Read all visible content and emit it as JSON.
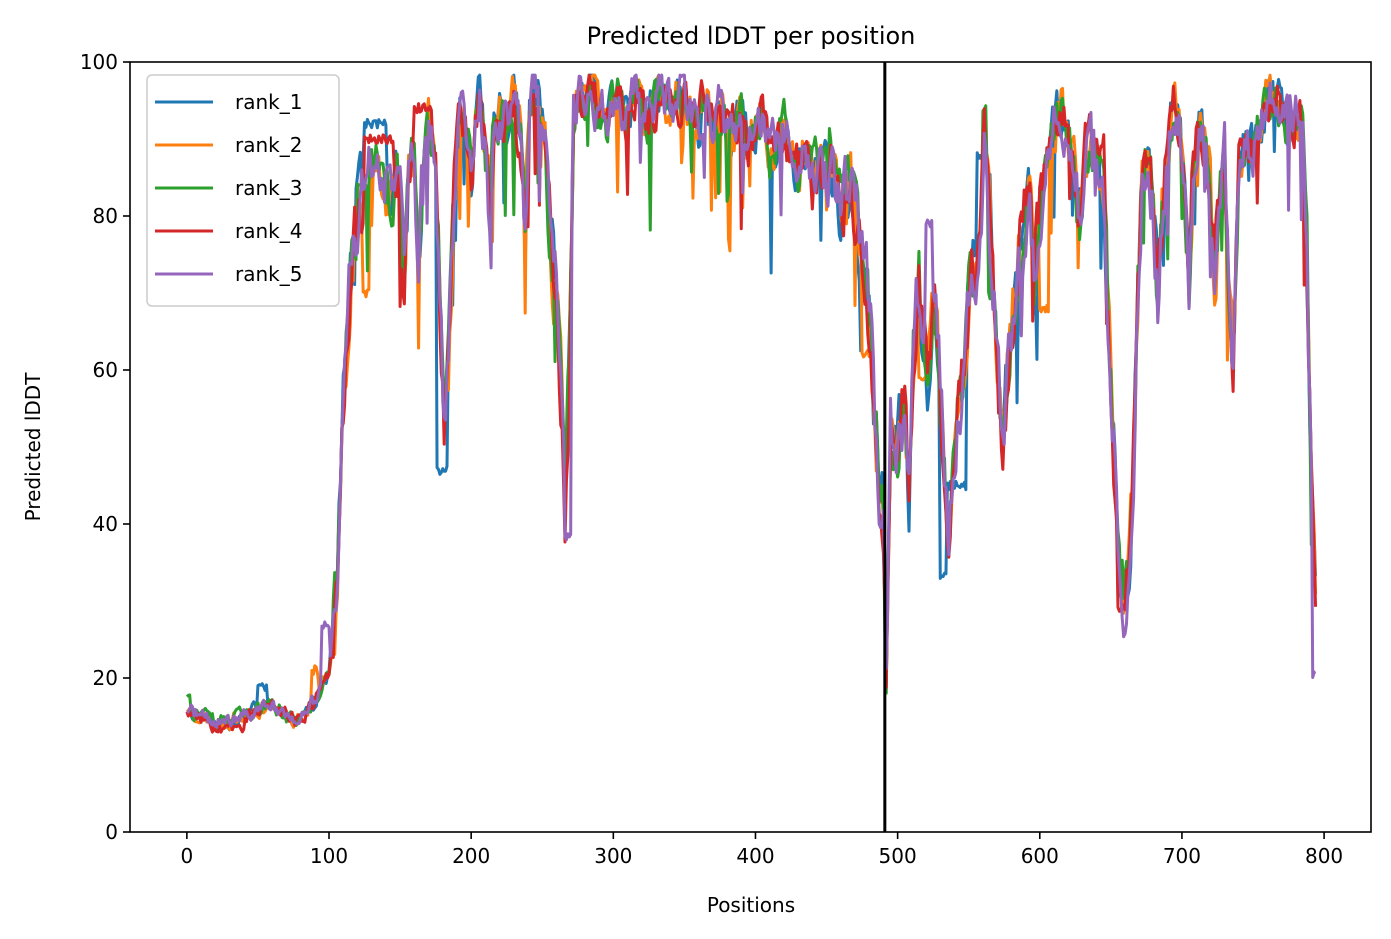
{
  "chart_data": {
    "type": "line",
    "title": "Predicted lDDT per position",
    "xlabel": "Positions",
    "ylabel": "Predicted lDDT",
    "xlim": [
      -40,
      833
    ],
    "ylim": [
      0,
      100
    ],
    "xticks": [
      0,
      100,
      200,
      300,
      400,
      500,
      600,
      700,
      800
    ],
    "xtick_labels": [
      "0",
      "100",
      "200",
      "300",
      "400",
      "500",
      "600",
      "700",
      "800"
    ],
    "yticks": [
      0,
      20,
      40,
      60,
      80,
      100
    ],
    "ytick_labels": [
      "0",
      "20",
      "40",
      "60",
      "80",
      "100"
    ],
    "grid": false,
    "legend_position": "upper-left",
    "vline": {
      "x": 491,
      "color": "#000000"
    },
    "base_profile": [
      [
        0,
        16
      ],
      [
        10,
        15
      ],
      [
        20,
        14
      ],
      [
        30,
        14.5
      ],
      [
        40,
        15
      ],
      [
        50,
        16
      ],
      [
        60,
        16.5
      ],
      [
        70,
        15
      ],
      [
        80,
        14.5
      ],
      [
        90,
        17
      ],
      [
        100,
        21
      ],
      [
        105,
        30
      ],
      [
        110,
        55
      ],
      [
        115,
        73
      ],
      [
        120,
        80
      ],
      [
        125,
        83
      ],
      [
        130,
        86
      ],
      [
        135,
        87
      ],
      [
        140,
        85
      ],
      [
        145,
        84
      ],
      [
        150,
        82
      ],
      [
        153,
        70
      ],
      [
        156,
        86
      ],
      [
        160,
        88
      ],
      [
        163,
        72
      ],
      [
        166,
        86
      ],
      [
        170,
        92
      ],
      [
        175,
        86
      ],
      [
        178,
        70
      ],
      [
        181,
        52
      ],
      [
        184,
        60
      ],
      [
        188,
        82
      ],
      [
        192,
        94
      ],
      [
        196,
        92
      ],
      [
        200,
        85
      ],
      [
        203,
        93
      ],
      [
        206,
        96
      ],
      [
        210,
        88
      ],
      [
        213,
        80
      ],
      [
        216,
        92
      ],
      [
        220,
        94
      ],
      [
        225,
        92
      ],
      [
        230,
        95
      ],
      [
        235,
        89
      ],
      [
        238,
        78
      ],
      [
        241,
        94
      ],
      [
        244,
        97
      ],
      [
        248,
        94
      ],
      [
        252,
        90
      ],
      [
        256,
        75
      ],
      [
        260,
        70
      ],
      [
        263,
        58
      ],
      [
        266,
        40
      ],
      [
        269,
        60
      ],
      [
        272,
        92
      ],
      [
        276,
        97
      ],
      [
        280,
        95
      ],
      [
        285,
        96
      ],
      [
        290,
        94
      ],
      [
        295,
        92
      ],
      [
        300,
        96
      ],
      [
        305,
        94
      ],
      [
        310,
        93
      ],
      [
        315,
        96
      ],
      [
        320,
        94
      ],
      [
        325,
        92
      ],
      [
        330,
        95
      ],
      [
        335,
        96
      ],
      [
        340,
        93
      ],
      [
        345,
        95
      ],
      [
        350,
        96
      ],
      [
        355,
        94
      ],
      [
        360,
        92
      ],
      [
        365,
        95
      ],
      [
        370,
        93
      ],
      [
        375,
        94
      ],
      [
        380,
        91
      ],
      [
        385,
        92
      ],
      [
        390,
        93
      ],
      [
        395,
        89
      ],
      [
        400,
        91
      ],
      [
        405,
        93
      ],
      [
        410,
        88
      ],
      [
        415,
        90
      ],
      [
        420,
        91
      ],
      [
        425,
        88
      ],
      [
        430,
        86
      ],
      [
        435,
        89
      ],
      [
        440,
        85
      ],
      [
        445,
        87
      ],
      [
        450,
        83
      ],
      [
        455,
        86
      ],
      [
        460,
        81
      ],
      [
        465,
        84
      ],
      [
        470,
        80
      ],
      [
        475,
        76
      ],
      [
        478,
        72
      ],
      [
        481,
        65
      ],
      [
        484,
        52
      ],
      [
        487,
        45
      ],
      [
        490,
        42
      ],
      [
        492,
        20
      ],
      [
        495,
        52
      ],
      [
        500,
        50
      ],
      [
        505,
        55
      ],
      [
        508,
        44
      ],
      [
        511,
        62
      ],
      [
        515,
        72
      ],
      [
        518,
        66
      ],
      [
        521,
        60
      ],
      [
        525,
        70
      ],
      [
        528,
        65
      ],
      [
        531,
        55
      ],
      [
        534,
        42
      ],
      [
        536,
        38
      ],
      [
        540,
        48
      ],
      [
        545,
        58
      ],
      [
        550,
        68
      ],
      [
        555,
        74
      ],
      [
        558,
        80
      ],
      [
        561,
        90
      ],
      [
        565,
        80
      ],
      [
        568,
        70
      ],
      [
        571,
        58
      ],
      [
        574,
        52
      ],
      [
        577,
        60
      ],
      [
        580,
        66
      ],
      [
        585,
        74
      ],
      [
        590,
        80
      ],
      [
        593,
        84
      ],
      [
        596,
        72
      ],
      [
        600,
        80
      ],
      [
        605,
        88
      ],
      [
        610,
        92
      ],
      [
        615,
        94
      ],
      [
        620,
        90
      ],
      [
        625,
        86
      ],
      [
        628,
        80
      ],
      [
        632,
        88
      ],
      [
        636,
        90
      ],
      [
        640,
        87
      ],
      [
        645,
        85
      ],
      [
        648,
        68
      ],
      [
        651,
        55
      ],
      [
        654,
        42
      ],
      [
        657,
        34
      ],
      [
        660,
        31
      ],
      [
        663,
        36
      ],
      [
        666,
        48
      ],
      [
        669,
        70
      ],
      [
        672,
        85
      ],
      [
        676,
        88
      ],
      [
        680,
        80
      ],
      [
        683,
        70
      ],
      [
        686,
        80
      ],
      [
        690,
        88
      ],
      [
        694,
        95
      ],
      [
        698,
        92
      ],
      [
        702,
        82
      ],
      [
        705,
        72
      ],
      [
        708,
        88
      ],
      [
        712,
        92
      ],
      [
        716,
        90
      ],
      [
        720,
        84
      ],
      [
        723,
        72
      ],
      [
        726,
        78
      ],
      [
        730,
        88
      ],
      [
        733,
        70
      ],
      [
        736,
        62
      ],
      [
        740,
        86
      ],
      [
        745,
        90
      ],
      [
        750,
        88
      ],
      [
        755,
        92
      ],
      [
        760,
        95
      ],
      [
        765,
        96
      ],
      [
        770,
        94
      ],
      [
        775,
        92
      ],
      [
        780,
        93
      ],
      [
        785,
        91
      ],
      [
        788,
        75
      ],
      [
        791,
        45
      ],
      [
        794,
        28
      ]
    ],
    "series": [
      {
        "name": "rank_1",
        "color": "#1f77b4",
        "seed": 11,
        "overrides": [
          [
            18,
            21,
            14
          ],
          [
            50,
            56,
            19
          ],
          [
            125,
            140,
            92
          ],
          [
            176,
            183,
            47
          ],
          [
            530,
            537,
            33.5
          ],
          [
            535,
            548,
            45
          ],
          [
            556,
            560,
            88
          ],
          [
            655,
            663,
            31
          ]
        ]
      },
      {
        "name": "rank_2",
        "color": "#ff7f0e",
        "seed": 23,
        "overrides": [
          [
            88,
            92,
            21
          ],
          [
            124,
            128,
            70
          ],
          [
            475,
            480,
            62
          ],
          [
            515,
            520,
            59
          ],
          [
            600,
            606,
            68
          ]
        ]
      },
      {
        "name": "rank_3",
        "color": "#2ca02c",
        "seed": 37,
        "overrides": [
          [
            0,
            2,
            18
          ],
          [
            120,
            126,
            84
          ],
          [
            560,
            562,
            94
          ],
          [
            791,
            794,
            37
          ]
        ]
      },
      {
        "name": "rank_4",
        "color": "#d62728",
        "seed": 53,
        "overrides": [
          [
            20,
            40,
            13.5
          ],
          [
            125,
            145,
            90
          ],
          [
            160,
            172,
            94
          ],
          [
            655,
            660,
            29
          ]
        ]
      },
      {
        "name": "rank_5",
        "color": "#9467bd",
        "seed": 71,
        "overrides": [
          [
            95,
            100,
            27
          ],
          [
            520,
            524,
            79
          ],
          [
            266,
            270,
            38.5
          ],
          [
            792,
            795,
            20.5
          ]
        ]
      }
    ]
  }
}
